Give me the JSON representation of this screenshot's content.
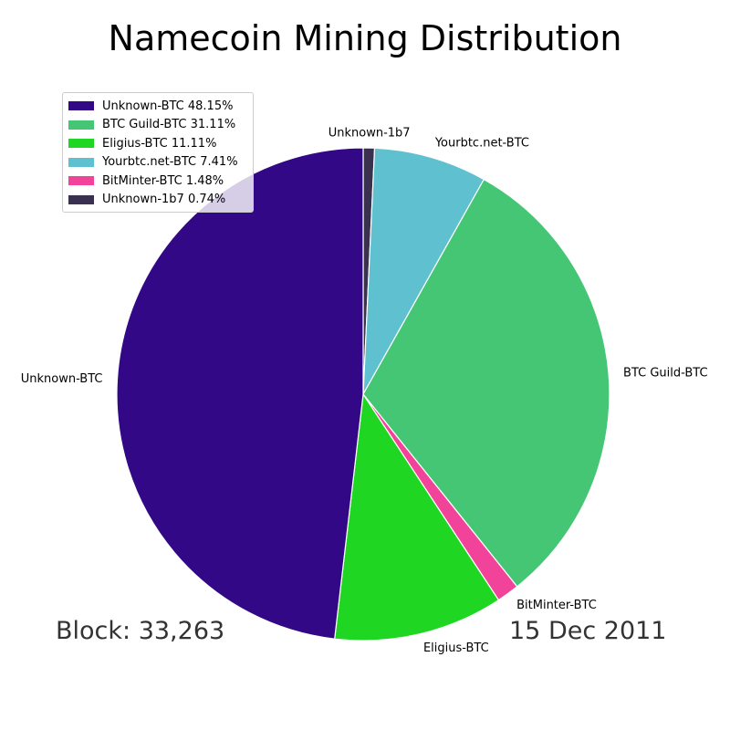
{
  "title": "Namecoin Mining Distribution",
  "block_label": "Block: 33,263",
  "date_label": "15 Dec 2011",
  "chart_data": {
    "type": "pie",
    "title": "Namecoin Mining Distribution",
    "start_angle_deg": 90,
    "direction": "clockwise",
    "legend_position": "upper-left",
    "slices": [
      {
        "label": "Unknown-1b7",
        "value": 0.74,
        "legend": "Unknown-1b7 0.74%",
        "color": "#3a3050"
      },
      {
        "label": "Yourbtc.net-BTC",
        "value": 7.41,
        "legend": "Yourbtc.net-BTC 7.41%",
        "color": "#5fc1cf"
      },
      {
        "label": "BTC Guild-BTC",
        "value": 31.11,
        "legend": "BTC Guild-BTC 31.11%",
        "color": "#45c674"
      },
      {
        "label": "BitMinter-BTC",
        "value": 1.48,
        "legend": "BitMinter-BTC 1.48%",
        "color": "#f2439a"
      },
      {
        "label": "Eligius-BTC",
        "value": 11.11,
        "legend": "Eligius-BTC 11.11%",
        "color": "#1fd623"
      },
      {
        "label": "Unknown-BTC",
        "value": 48.15,
        "legend": "Unknown-BTC 48.15%",
        "color": "#320886"
      }
    ],
    "legend_order": [
      "Unknown-BTC",
      "BTC Guild-BTC",
      "Eligius-BTC",
      "Yourbtc.net-BTC",
      "BitMinter-BTC",
      "Unknown-1b7"
    ]
  }
}
